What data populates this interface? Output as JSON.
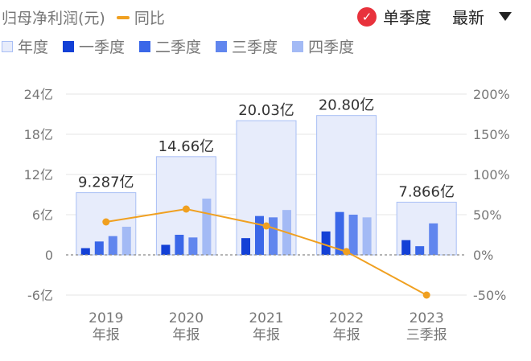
{
  "header": {
    "metric_label": "归母净利润(元)",
    "yoy_legend": "同比",
    "quarter_toggle_label": "单季度",
    "sort_label": "最新"
  },
  "legend": {
    "year": "年度",
    "q1": "一季度",
    "q2": "二季度",
    "q3": "三季度",
    "q4": "四季度"
  },
  "colors": {
    "year_fill": "#e7ecfb",
    "year_border": "#a9bff5",
    "q1": "#1340d6",
    "q2": "#3a67e8",
    "q3": "#6186ee",
    "q4": "#a3baf5",
    "yoy_line": "#f0a020",
    "accent_red": "#e8323c"
  },
  "chart_data": {
    "type": "bar",
    "categories": [
      "2019 年报",
      "2020 年报",
      "2021 年报",
      "2022 年报",
      "2023 三季报"
    ],
    "category_lines": [
      [
        "2019",
        "年报"
      ],
      [
        "2020",
        "年报"
      ],
      [
        "2021",
        "年报"
      ],
      [
        "2022",
        "年报"
      ],
      [
        "2023",
        "三季报"
      ]
    ],
    "annual_labels": [
      "9.287亿",
      "14.66亿",
      "20.03亿",
      "20.80亿",
      "7.866亿"
    ],
    "series": [
      {
        "name": "年度",
        "values": [
          9.287,
          14.66,
          20.03,
          20.8,
          7.866
        ]
      },
      {
        "name": "一季度",
        "values": [
          1.0,
          1.5,
          2.5,
          3.5,
          2.2
        ]
      },
      {
        "name": "二季度",
        "values": [
          2.0,
          3.0,
          5.8,
          6.4,
          1.3
        ]
      },
      {
        "name": "三季度",
        "values": [
          2.8,
          2.6,
          5.6,
          6.0,
          4.7
        ]
      },
      {
        "name": "四季度",
        "values": [
          4.2,
          8.4,
          6.7,
          5.6,
          null
        ]
      },
      {
        "name": "同比",
        "values": [
          41,
          57,
          36,
          4,
          -50
        ],
        "unit": "%"
      }
    ],
    "left_axis": {
      "ticks": [
        "24亿",
        "18亿",
        "12亿",
        "6亿",
        "0",
        "-6亿"
      ],
      "tick_values": [
        24,
        18,
        12,
        6,
        0,
        -6
      ],
      "ylim": [
        -6,
        24
      ]
    },
    "right_axis": {
      "ticks": [
        "200%",
        "150%",
        "100%",
        "50%",
        "0%",
        "-50%"
      ],
      "tick_values": [
        200,
        150,
        100,
        50,
        0,
        -50
      ],
      "ylim": [
        -50,
        200
      ]
    },
    "grid": true
  }
}
